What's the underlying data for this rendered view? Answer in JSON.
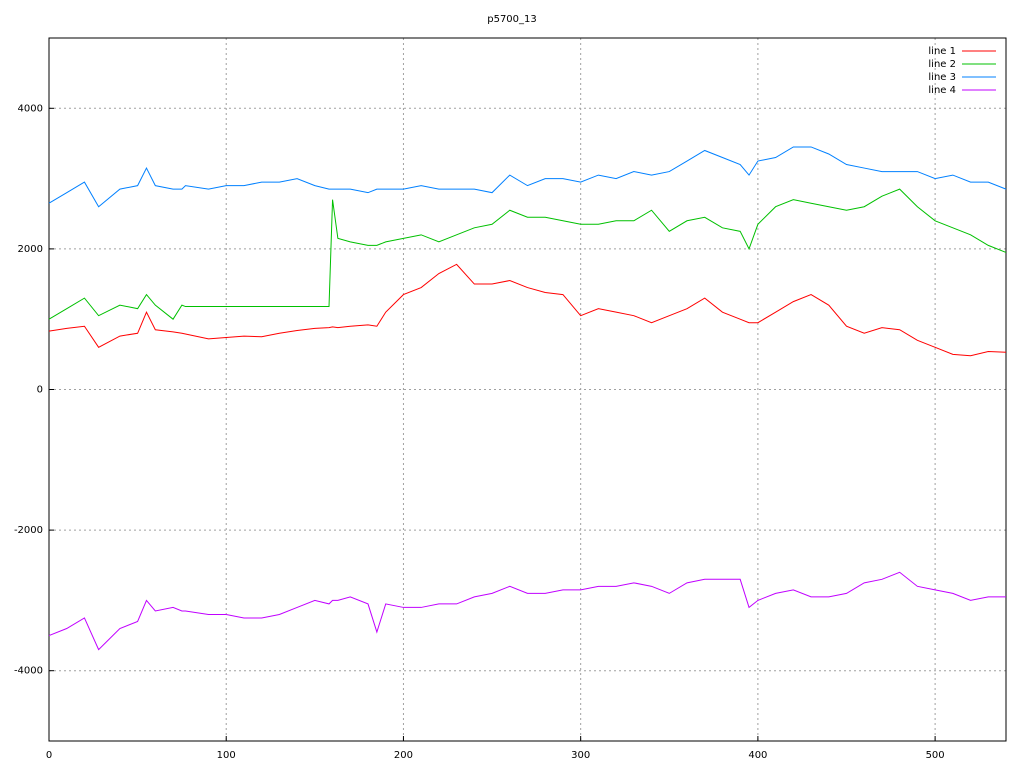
{
  "chart_data": {
    "type": "line",
    "title": "p5700_13",
    "x": [
      0,
      10,
      20,
      28,
      40,
      50,
      55,
      60,
      70,
      75,
      77,
      90,
      100,
      110,
      120,
      130,
      140,
      150,
      158,
      160,
      163,
      170,
      180,
      185,
      190,
      200,
      210,
      220,
      230,
      240,
      250,
      260,
      270,
      280,
      290,
      300,
      310,
      320,
      330,
      340,
      350,
      360,
      370,
      380,
      390,
      395,
      400,
      410,
      420,
      430,
      440,
      450,
      460,
      470,
      480,
      490,
      500,
      510,
      520,
      530,
      540
    ],
    "series": [
      {
        "name": "line 1",
        "color": "#ff0000",
        "values": [
          830,
          870,
          900,
          600,
          760,
          800,
          1100,
          850,
          820,
          800,
          790,
          720,
          740,
          760,
          750,
          800,
          840,
          870,
          880,
          890,
          880,
          900,
          920,
          900,
          1100,
          1350,
          1450,
          1650,
          1780,
          1500,
          1500,
          1550,
          1450,
          1380,
          1350,
          1050,
          1150,
          1100,
          1050,
          950,
          1050,
          1150,
          1300,
          1100,
          1000,
          950,
          950,
          1100,
          1250,
          1350,
          1200,
          900,
          800,
          880,
          850,
          700,
          600,
          500,
          480,
          540,
          530
        ]
      },
      {
        "name": "line 2",
        "color": "#00c000",
        "values": [
          1000,
          1150,
          1300,
          1050,
          1200,
          1150,
          1350,
          1200,
          1000,
          1200,
          1180,
          1180,
          1180,
          1180,
          1180,
          1180,
          1180,
          1180,
          1180,
          2700,
          2150,
          2100,
          2050,
          2050,
          2100,
          2150,
          2200,
          2100,
          2200,
          2300,
          2350,
          2550,
          2450,
          2450,
          2400,
          2350,
          2350,
          2400,
          2400,
          2550,
          2250,
          2400,
          2450,
          2300,
          2250,
          2000,
          2350,
          2600,
          2700,
          2650,
          2600,
          2550,
          2600,
          2750,
          2850,
          2600,
          2400,
          2300,
          2200,
          2050,
          1950
        ]
      },
      {
        "name": "line 3",
        "color": "#0080ff",
        "values": [
          2650,
          2800,
          2950,
          2600,
          2850,
          2900,
          3150,
          2900,
          2850,
          2850,
          2900,
          2850,
          2900,
          2900,
          2950,
          2950,
          3000,
          2900,
          2850,
          2850,
          2850,
          2850,
          2800,
          2850,
          2850,
          2850,
          2900,
          2850,
          2850,
          2850,
          2800,
          3050,
          2900,
          3000,
          3000,
          2950,
          3050,
          3000,
          3100,
          3050,
          3100,
          3250,
          3400,
          3300,
          3200,
          3050,
          3250,
          3300,
          3450,
          3450,
          3350,
          3200,
          3150,
          3100,
          3100,
          3100,
          3000,
          3050,
          2950,
          2950,
          2850
        ]
      },
      {
        "name": "line 4",
        "color": "#c000ff",
        "values": [
          -3500,
          -3400,
          -3250,
          -3700,
          -3400,
          -3300,
          -3000,
          -3150,
          -3100,
          -3150,
          -3150,
          -3200,
          -3200,
          -3250,
          -3250,
          -3200,
          -3100,
          -3000,
          -3050,
          -3000,
          -3000,
          -2950,
          -3050,
          -3450,
          -3050,
          -3100,
          -3100,
          -3050,
          -3050,
          -2950,
          -2900,
          -2800,
          -2900,
          -2900,
          -2850,
          -2850,
          -2800,
          -2800,
          -2750,
          -2800,
          -2900,
          -2750,
          -2700,
          -2700,
          -2700,
          -3100,
          -3000,
          -2900,
          -2850,
          -2950,
          -2950,
          -2900,
          -2750,
          -2700,
          -2600,
          -2800,
          -2850,
          -2900,
          -3000,
          -2950,
          -2950
        ]
      }
    ],
    "xlim": [
      0,
      540
    ],
    "ylim": [
      -5000,
      5000
    ],
    "xticks": [
      0,
      100,
      200,
      300,
      400,
      500
    ],
    "yticks": [
      -4000,
      -2000,
      0,
      2000,
      4000
    ],
    "grid": true,
    "legend": "top right"
  }
}
